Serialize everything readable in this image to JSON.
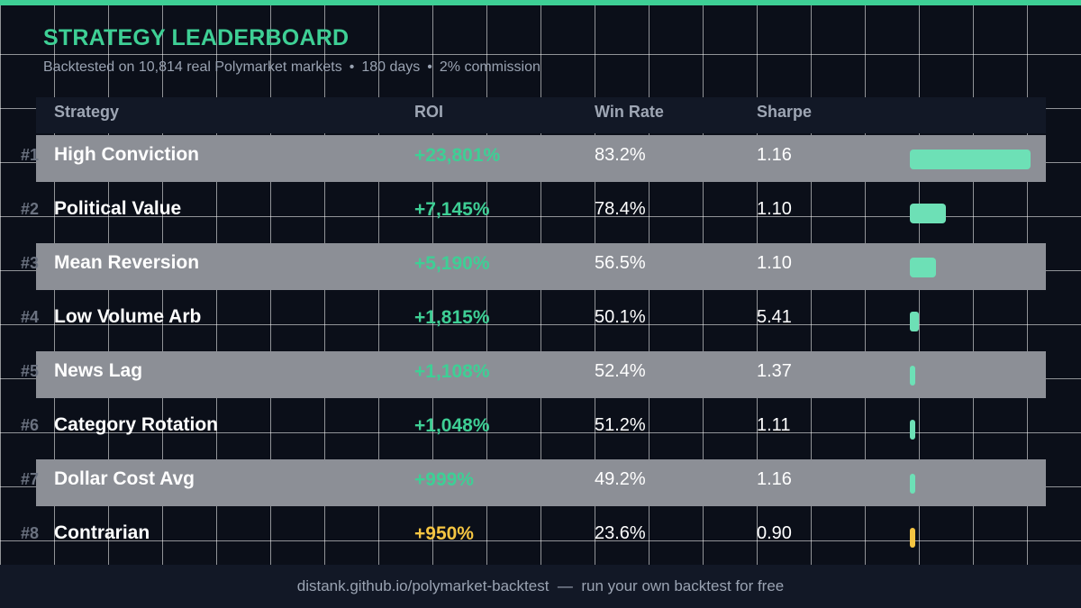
{
  "title": "STRATEGY LEADERBOARD",
  "subtitle": {
    "part1": "Backtested on 10,814 real Polymarket markets",
    "separator": "•",
    "part2": "180 days",
    "part3": "2% commission"
  },
  "columns": {
    "strategy": "Strategy",
    "roi": "ROI",
    "win_rate": "Win Rate",
    "sharpe": "Sharpe"
  },
  "colors": {
    "accent": "#3ecf95",
    "bar": "#6de0b6",
    "warning": "#f5c542"
  },
  "rows": [
    {
      "rank": "#1",
      "name": "High Conviction",
      "roi": "+23,801%",
      "roi_value": 23801,
      "win_rate": "83.2%",
      "sharpe": "1.16",
      "warn": false
    },
    {
      "rank": "#2",
      "name": "Political Value",
      "roi": "+7,145%",
      "roi_value": 7145,
      "win_rate": "78.4%",
      "sharpe": "1.10",
      "warn": false
    },
    {
      "rank": "#3",
      "name": "Mean Reversion",
      "roi": "+5,190%",
      "roi_value": 5190,
      "win_rate": "56.5%",
      "sharpe": "1.10",
      "warn": false
    },
    {
      "rank": "#4",
      "name": "Low Volume Arb",
      "roi": "+1,815%",
      "roi_value": 1815,
      "win_rate": "50.1%",
      "sharpe": "5.41",
      "warn": false
    },
    {
      "rank": "#5",
      "name": "News Lag",
      "roi": "+1,108%",
      "roi_value": 1108,
      "win_rate": "52.4%",
      "sharpe": "1.37",
      "warn": false
    },
    {
      "rank": "#6",
      "name": "Category Rotation",
      "roi": "+1,048%",
      "roi_value": 1048,
      "win_rate": "51.2%",
      "sharpe": "1.11",
      "warn": false
    },
    {
      "rank": "#7",
      "name": "Dollar Cost Avg",
      "roi": "+999%",
      "roi_value": 999,
      "win_rate": "49.2%",
      "sharpe": "1.16",
      "warn": false
    },
    {
      "rank": "#8",
      "name": "Contrarian",
      "roi": "+950%",
      "roi_value": 950,
      "win_rate": "23.6%",
      "sharpe": "0.90",
      "warn": true
    }
  ],
  "footer": {
    "link": "distank.github.io/polymarket-backtest",
    "separator": "—",
    "tagline": "run your own backtest for free"
  }
}
